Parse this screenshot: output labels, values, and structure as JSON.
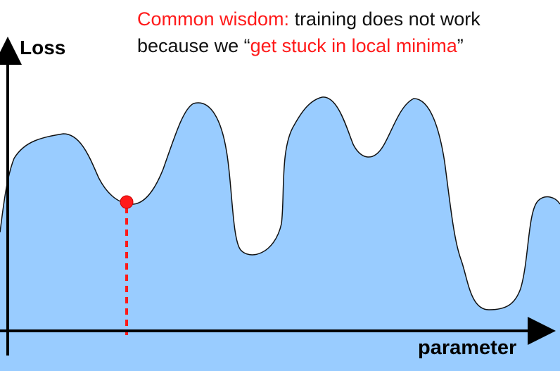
{
  "caption": {
    "line1_highlight": "Common wisdom:",
    "line1_rest": " training does not work",
    "line2_start": "because we “",
    "line2_highlight": "get stuck in local minima",
    "line2_end": "”"
  },
  "axes": {
    "y_label": "Loss",
    "x_label": "parameter"
  },
  "colors": {
    "fill": "#99ccff",
    "outline": "#111111",
    "highlight": "#ff1a1a",
    "axis": "#000000"
  }
}
